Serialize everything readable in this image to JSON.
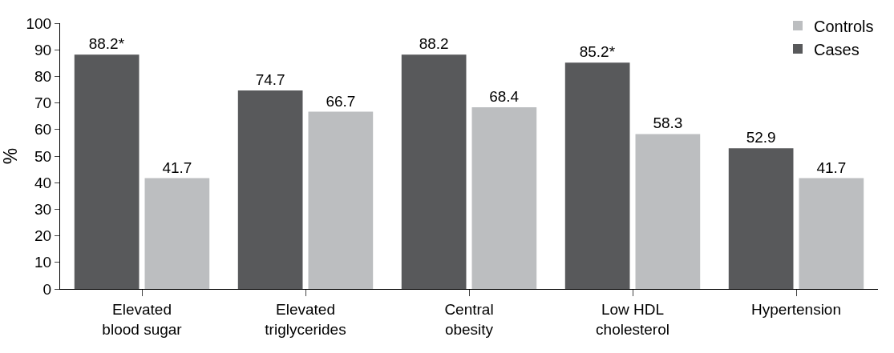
{
  "chart_data": {
    "type": "bar",
    "ylabel": "%",
    "categories": [
      "Elevated\nblood sugar",
      "Elevated\ntriglycerides",
      "Central\nobesity",
      "Low HDL\ncholesterol",
      "Hypertension"
    ],
    "series": [
      {
        "name": "Cases",
        "color": "#58595b",
        "values": [
          88.2,
          74.7,
          88.2,
          85.2,
          52.9
        ],
        "value_labels": [
          "88.2*",
          "74.7",
          "88.2",
          "85.2*",
          "52.9"
        ]
      },
      {
        "name": "Controls",
        "color": "#bcbec0",
        "values": [
          41.7,
          66.7,
          68.4,
          58.3,
          41.7
        ],
        "value_labels": [
          "41.7",
          "66.7",
          "68.4",
          "58.3",
          "41.7"
        ]
      }
    ],
    "ylim": [
      0,
      100
    ],
    "yticks": [
      0,
      10,
      20,
      30,
      40,
      50,
      60,
      70,
      80,
      90,
      100
    ],
    "legend": "top right"
  }
}
